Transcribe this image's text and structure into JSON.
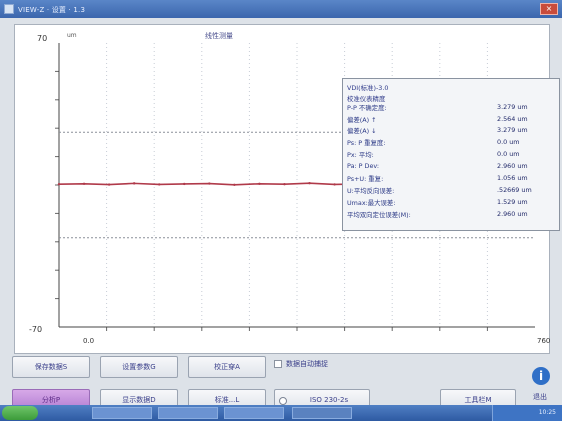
{
  "window": {
    "title": "VIEW-Z  ·  设置  ·  1.3"
  },
  "chart_data": {
    "type": "line",
    "y_ticks": [
      "70",
      "-70"
    ],
    "x_ticks": [
      "0.0",
      "760"
    ],
    "top_left_unit": "um",
    "title": "线性测量",
    "ylim": [
      -70,
      70
    ],
    "xlim": [
      0,
      760
    ],
    "reference_lines": [
      26,
      -26
    ],
    "series": [
      {
        "x": [
          0,
          40,
          80,
          120,
          160,
          200,
          240,
          280,
          320,
          360,
          400,
          440,
          480,
          520,
          560,
          600,
          640,
          680,
          720,
          760
        ],
        "values": [
          0.4,
          0.6,
          0.2,
          0.8,
          0.3,
          0.5,
          0.7,
          0.1,
          0.6,
          0.4,
          0.9,
          0.3,
          0.5,
          0.2,
          0.7,
          0.4,
          0.6,
          0.3,
          0.5,
          0.4
        ]
      }
    ]
  },
  "info": {
    "title": "VDI(标准)-3.0",
    "subtitle": "校准仪表精度",
    "rows": [
      {
        "label": "P-P 不确定度:",
        "value": "3.279 um"
      },
      {
        "label": "偏差(A) ↑",
        "value": "2.564 um"
      },
      {
        "label": "偏差(A) ↓",
        "value": "3.279 um"
      },
      {
        "label": "Ps: P 重复度:",
        "value": "0.0 um"
      },
      {
        "label": "Px: 平均:",
        "value": "0.0 um"
      },
      {
        "label": "Pa: P Dev:",
        "value": "2.960 um"
      },
      {
        "label": "Ps+U: 重复:",
        "value": "1.056 um"
      },
      {
        "label": "U:平均反向误差:",
        "value": ".52669 um"
      },
      {
        "label": "Umax:最大误差:",
        "value": "1.529 um"
      },
      {
        "label": "平均双向定位误差(M):",
        "value": "2.960 um"
      }
    ]
  },
  "buttons": {
    "save": "保存数据S",
    "setup": "设置参数G",
    "analysis": "校正穿A",
    "auto_label": "数据自动捕捉",
    "pink": "分析P",
    "show_data": "显示数据D",
    "standards": "标准...L",
    "iso": "ISO 230-2s",
    "tools": "工具栏M",
    "exit": "退出"
  },
  "taskbar": {
    "clock": "10:25"
  },
  "icons": {
    "app": "app-icon",
    "close": "close-icon",
    "info": "info-icon",
    "cursor": "mouse-cursor-icon"
  },
  "colors": {
    "trace": "#b03a4a",
    "title_bar": "#3b66ad",
    "pink_button": "#b27fd2"
  }
}
